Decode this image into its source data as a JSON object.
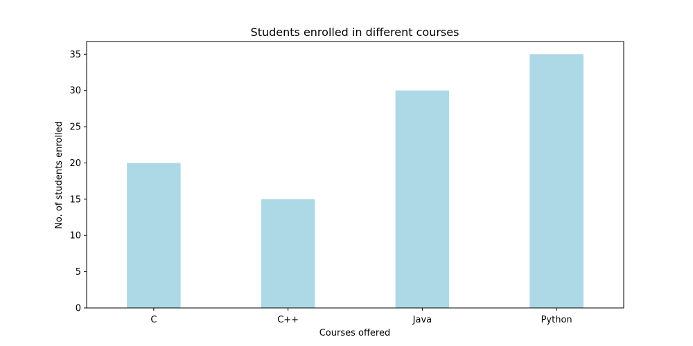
{
  "chart_data": {
    "type": "bar",
    "title": "Students enrolled in different courses",
    "xlabel": "Courses offered",
    "ylabel": "No. of students enrolled",
    "categories": [
      "C",
      "C++",
      "Java",
      "Python"
    ],
    "values": [
      20,
      15,
      30,
      35
    ],
    "ylim": [
      0,
      36.75
    ],
    "yticks": [
      0,
      5,
      10,
      15,
      20,
      25,
      30,
      35
    ],
    "grid": false,
    "bar_color": "#add8e6",
    "axis_color": "#000000"
  }
}
